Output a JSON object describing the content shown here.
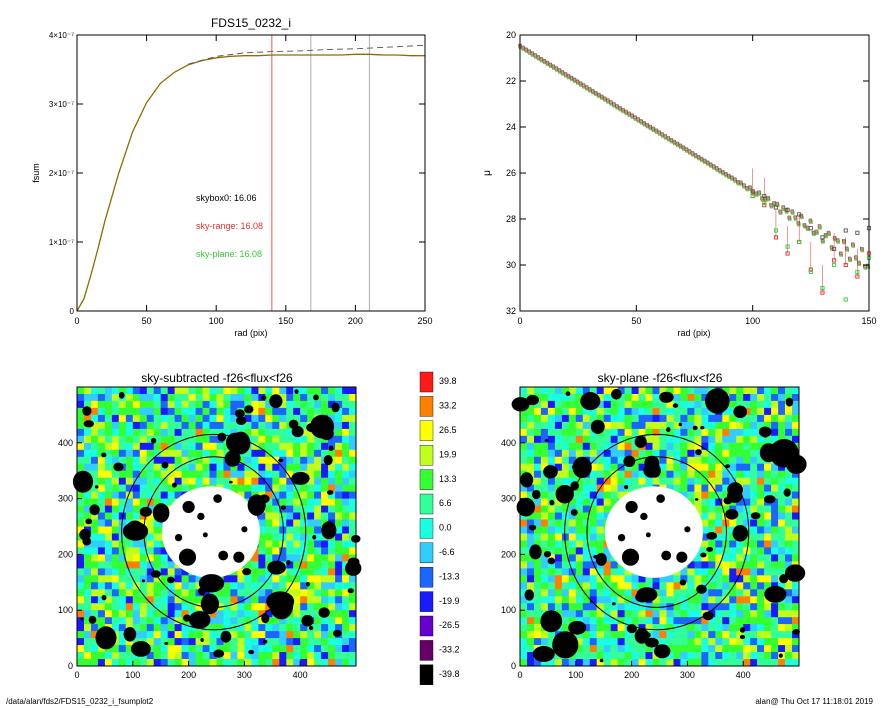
{
  "chart_data": [
    {
      "type": "line",
      "title": "FDS15_0232_i",
      "xlabel": "rad (pix)",
      "ylabel": "fsum",
      "xlim": [
        0,
        250
      ],
      "ylim": [
        0,
        4e-07
      ],
      "x_ticks": [
        "0",
        "50",
        "100",
        "150",
        "200",
        "250"
      ],
      "y_ticks": [
        "0",
        "1×10⁻⁷",
        "2×10⁻⁷",
        "3×10⁻⁷",
        "4×10⁻⁷"
      ],
      "series": [
        {
          "color": "#8c6d00",
          "x": [
            0,
            5,
            10,
            15,
            20,
            30,
            40,
            50,
            60,
            70,
            80,
            90,
            100,
            110,
            120,
            130,
            140,
            150,
            160,
            170,
            180,
            190,
            200,
            210,
            220,
            230,
            240,
            250
          ],
          "y": [
            0,
            1.8e-08,
            5.2e-08,
            9e-08,
            1.3e-07,
            2e-07,
            2.6e-07,
            3.02e-07,
            3.3e-07,
            3.46e-07,
            3.57e-07,
            3.63e-07,
            3.67e-07,
            3.69e-07,
            3.7e-07,
            3.7e-07,
            3.71e-07,
            3.71e-07,
            3.71e-07,
            3.71e-07,
            3.71e-07,
            3.71e-07,
            3.72e-07,
            3.72e-07,
            3.71e-07,
            3.71e-07,
            3.7e-07,
            3.7e-07
          ]
        },
        {
          "color": "#555555",
          "dashed": true,
          "x": [
            80,
            100,
            120,
            140,
            160,
            180,
            200,
            220,
            240,
            250
          ],
          "y": [
            3.58e-07,
            3.69e-07,
            3.74e-07,
            3.76e-07,
            3.77e-07,
            3.79e-07,
            3.8e-07,
            3.82e-07,
            3.84e-07,
            3.85e-07
          ]
        }
      ],
      "vlines": [
        {
          "x": 140,
          "color": "#e53030"
        },
        {
          "x": 168,
          "color": "#999999"
        },
        {
          "x": 210,
          "color": "#999999"
        }
      ],
      "annotations": [
        {
          "text": "skybox0: 16.06",
          "color": "#000000"
        },
        {
          "text": "sky-range: 16.08",
          "color": "#e53030"
        },
        {
          "text": "sky-plane: 16.08",
          "color": "#33cc33"
        }
      ]
    },
    {
      "type": "scatter",
      "xlabel": "rad (pix)",
      "ylabel": "μ",
      "xlim": [
        0,
        150
      ],
      "ylim": [
        32,
        20
      ],
      "x_ticks": [
        "0",
        "50",
        "100",
        "150"
      ],
      "y_ticks": [
        "20",
        "22",
        "24",
        "26",
        "28",
        "30",
        "32"
      ],
      "series": [
        {
          "name": "",
          "color": "#555555",
          "x": [
            0,
            10,
            20,
            30,
            40,
            50,
            60,
            70,
            80,
            90,
            100,
            105,
            110,
            115,
            120,
            125,
            130,
            135,
            140,
            145,
            150
          ],
          "y": [
            20.5,
            21.2,
            21.9,
            22.6,
            23.3,
            24.0,
            24.6,
            25.2,
            25.7,
            26.2,
            26.8,
            27.0,
            27.5,
            27.6,
            27.8,
            28.4,
            28.8,
            29.3,
            28.5,
            28.6,
            28.4
          ]
        },
        {
          "name": "",
          "color": "#e53030",
          "x": [
            0,
            10,
            20,
            30,
            40,
            50,
            60,
            70,
            80,
            90,
            100,
            105,
            110,
            115,
            120,
            125,
            130,
            135,
            140,
            145,
            150
          ],
          "y": [
            20.5,
            21.2,
            21.9,
            22.6,
            23.3,
            24.0,
            24.6,
            25.2,
            25.7,
            26.3,
            27.0,
            27.4,
            28.8,
            29.5,
            29.0,
            30.2,
            31.2,
            29.8,
            30.0,
            30.5,
            29.5
          ]
        },
        {
          "name": "",
          "color": "#33cc33",
          "x": [
            0,
            10,
            20,
            30,
            40,
            50,
            60,
            70,
            80,
            90,
            100,
            105,
            110,
            115,
            120,
            125,
            130,
            135,
            140,
            145,
            150
          ],
          "y": [
            20.5,
            21.2,
            21.9,
            22.6,
            23.3,
            24.0,
            24.6,
            25.2,
            25.7,
            26.3,
            27.0,
            27.3,
            28.5,
            29.2,
            29.0,
            30.3,
            31.0,
            30.0,
            31.5,
            30.3,
            29.7
          ]
        }
      ]
    },
    {
      "type": "heatmap",
      "title": "sky-subtracted -f26<flux<f26",
      "xlim": [
        0,
        500
      ],
      "ylim": [
        0,
        500
      ],
      "x_ticks": [
        "0",
        "100",
        "200",
        "300",
        "400"
      ],
      "y_ticks": [
        "0",
        "100",
        "200",
        "300",
        "400"
      ]
    },
    {
      "type": "heatmap",
      "title": "sky-plane -f26<flux<f26",
      "xlim": [
        0,
        500
      ],
      "ylim": [
        0,
        500
      ],
      "x_ticks": [
        "0",
        "100",
        "200",
        "300",
        "400"
      ],
      "y_ticks": [
        "0",
        "100",
        "200",
        "300",
        "400"
      ]
    }
  ],
  "colorbar": {
    "labels": [
      "39.8",
      "33.2",
      "26.5",
      "19.9",
      "13.3",
      "6.6",
      "0.0",
      "-6.6",
      "-13.3",
      "-19.9",
      "-26.5",
      "-33.2",
      "-39.8"
    ],
    "colors": [
      "#ff1a1a",
      "#ff8000",
      "#ffff00",
      "#c0ff1a",
      "#33ff33",
      "#33ff99",
      "#1affe0",
      "#33ccff",
      "#1a66ff",
      "#1a1aff",
      "#6600cc",
      "#660066",
      "#000000"
    ]
  },
  "footer": {
    "path": "/data/alan/fds2/FDS15_0232_i_fsumplot2",
    "user": "alan@  Thu Oct 17 11:18:01 2019"
  }
}
